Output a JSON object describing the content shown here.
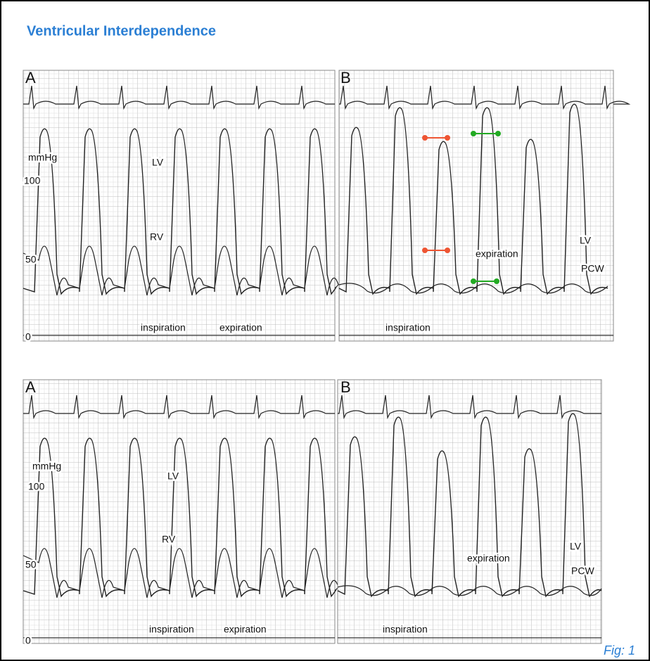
{
  "title": "Ventricular Interdependence",
  "figures": [
    {
      "panel_a": {
        "label": "A",
        "unit": "mmHg",
        "scale": [
          "100",
          "50",
          "0"
        ],
        "lv": "LV",
        "rv": "RV",
        "inspiration": "inspiration",
        "expiration": "expiration"
      },
      "panel_b": {
        "label": "B",
        "lv": "LV",
        "pcw": "PCW",
        "inspiration": "inspiration",
        "expiration": "expiration"
      }
    },
    {
      "panel_a": {
        "label": "A",
        "unit": "mmHg",
        "scale": [
          "100",
          "50",
          "0"
        ],
        "lv": "LV",
        "rv": "RV",
        "inspiration": "inspiration",
        "expiration": "expiration"
      },
      "panel_b": {
        "label": "B",
        "lv": "LV",
        "pcw": "PCW",
        "inspiration": "inspiration",
        "expiration": "expiration"
      }
    }
  ],
  "caption": "Fig: 1"
}
